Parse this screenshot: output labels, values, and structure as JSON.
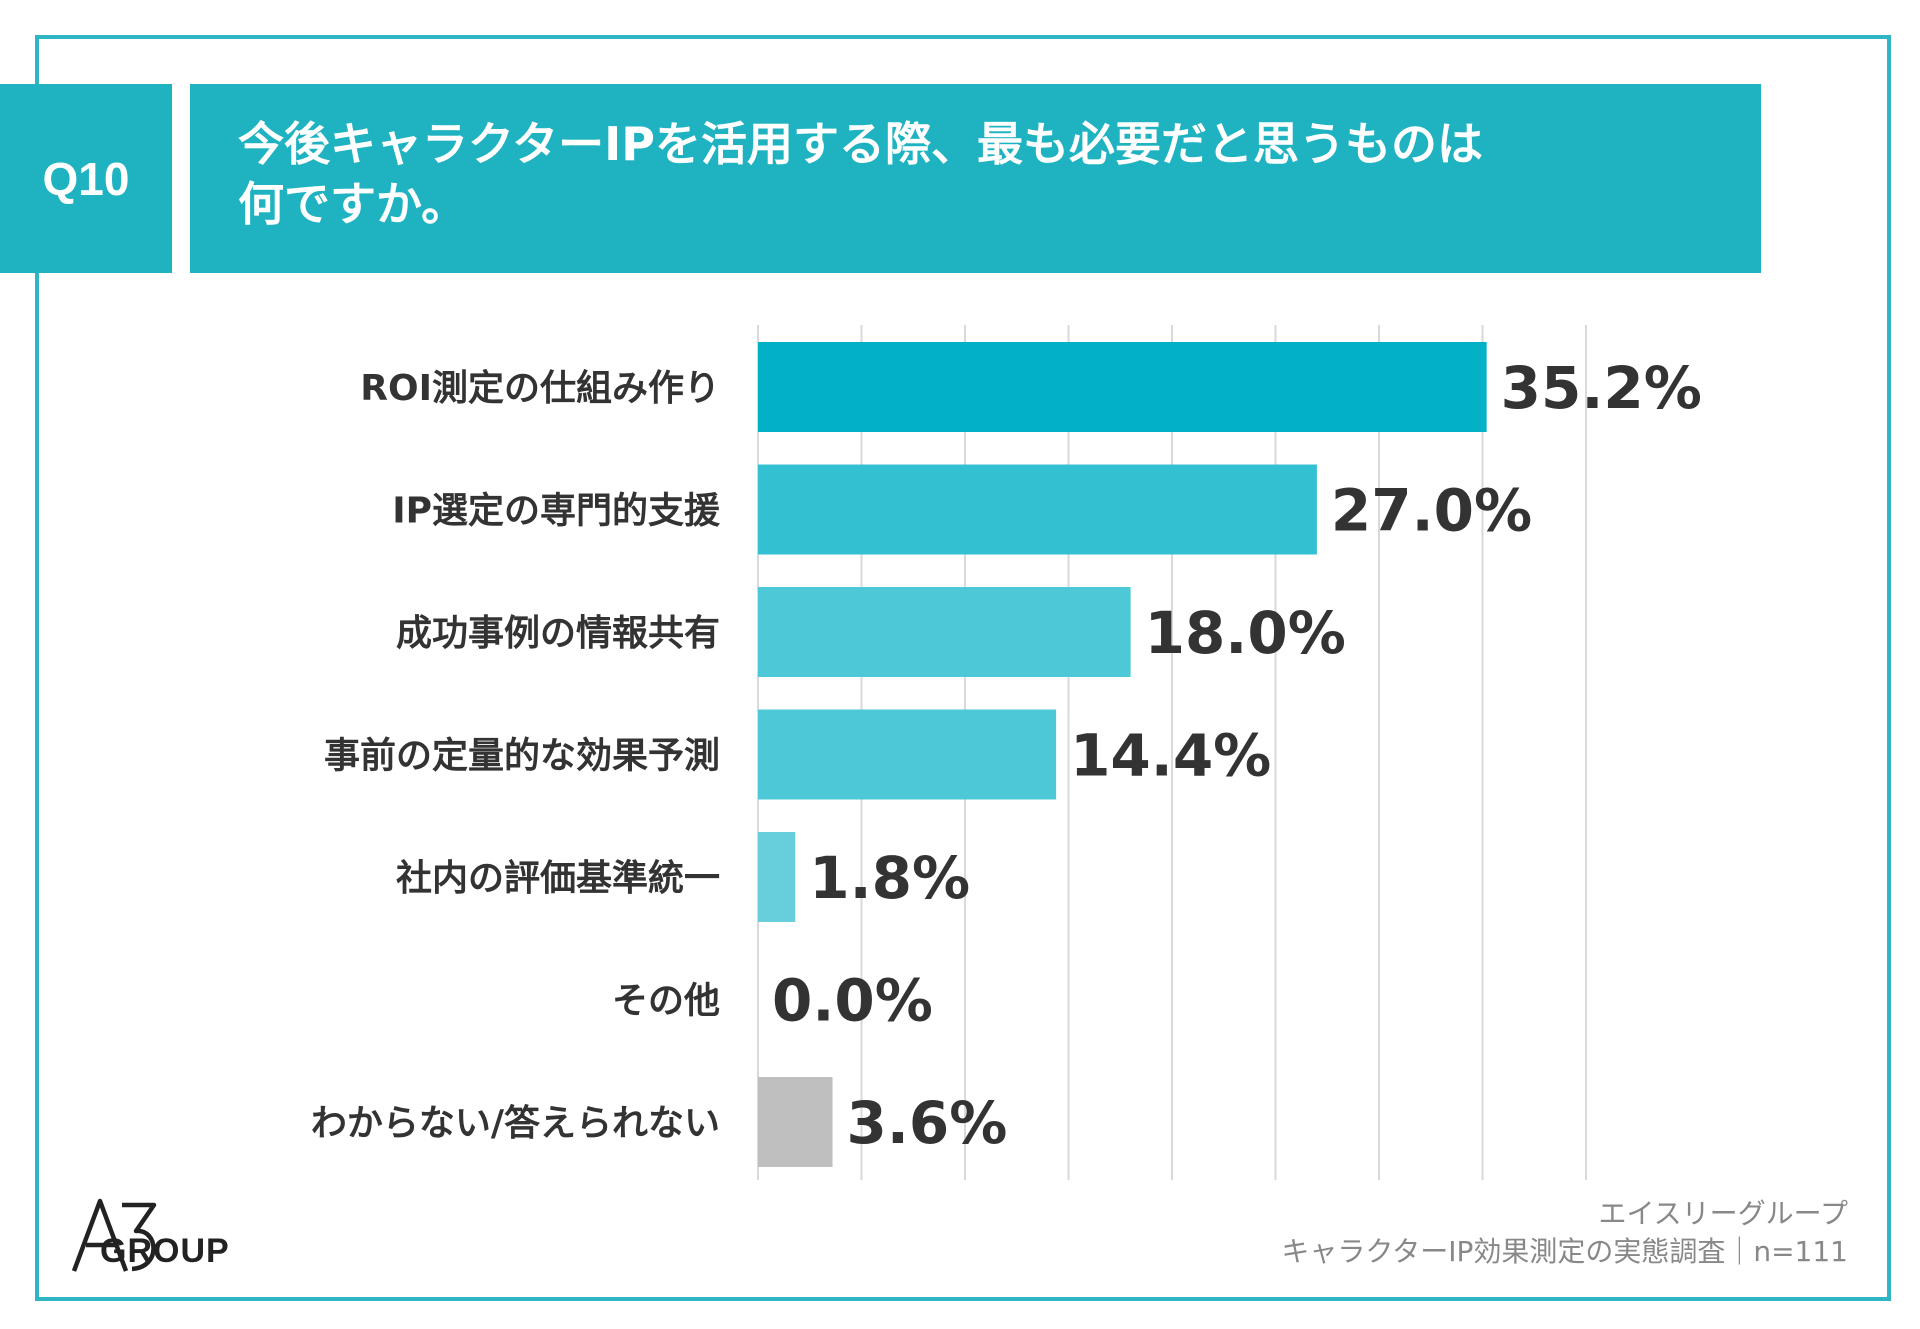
{
  "question": {
    "number": "Q10",
    "text": "今後キャラクターIPを活用する際、最も必要だと思うものは\n何ですか。"
  },
  "chart_data": {
    "type": "bar",
    "orientation": "horizontal",
    "categories": [
      "ROI測定の仕組み作り",
      "IP選定の専門的支援",
      "成功事例の情報共有",
      "事前の定量的な効果予測",
      "社内の評価基準統一",
      "その他",
      "わからない/答えられない"
    ],
    "values": [
      35.2,
      27.0,
      18.0,
      14.4,
      1.8,
      0.0,
      3.6
    ],
    "value_labels": [
      "35.2%",
      "27.0%",
      "18.0%",
      "14.4%",
      "1.8%",
      "0.0%",
      "3.6%"
    ],
    "bar_colors": [
      "#02b1c5",
      "#33c0d1",
      "#4dc8d6",
      "#4dc8d6",
      "#66cfdb",
      "#66cfdb",
      "#bfbfbf"
    ],
    "xlim": [
      0,
      40
    ],
    "grid": true,
    "unit": "%"
  },
  "footer": {
    "brand_logo_text": "GROUP",
    "source_line1": "エイスリーグループ",
    "source_line2": "キャラクターIP効果測定の実態調査｜n=111"
  },
  "colors": {
    "accent": "#1fb3c2",
    "frame": "#2fb5c3",
    "gridline": "#d9d9d9"
  }
}
